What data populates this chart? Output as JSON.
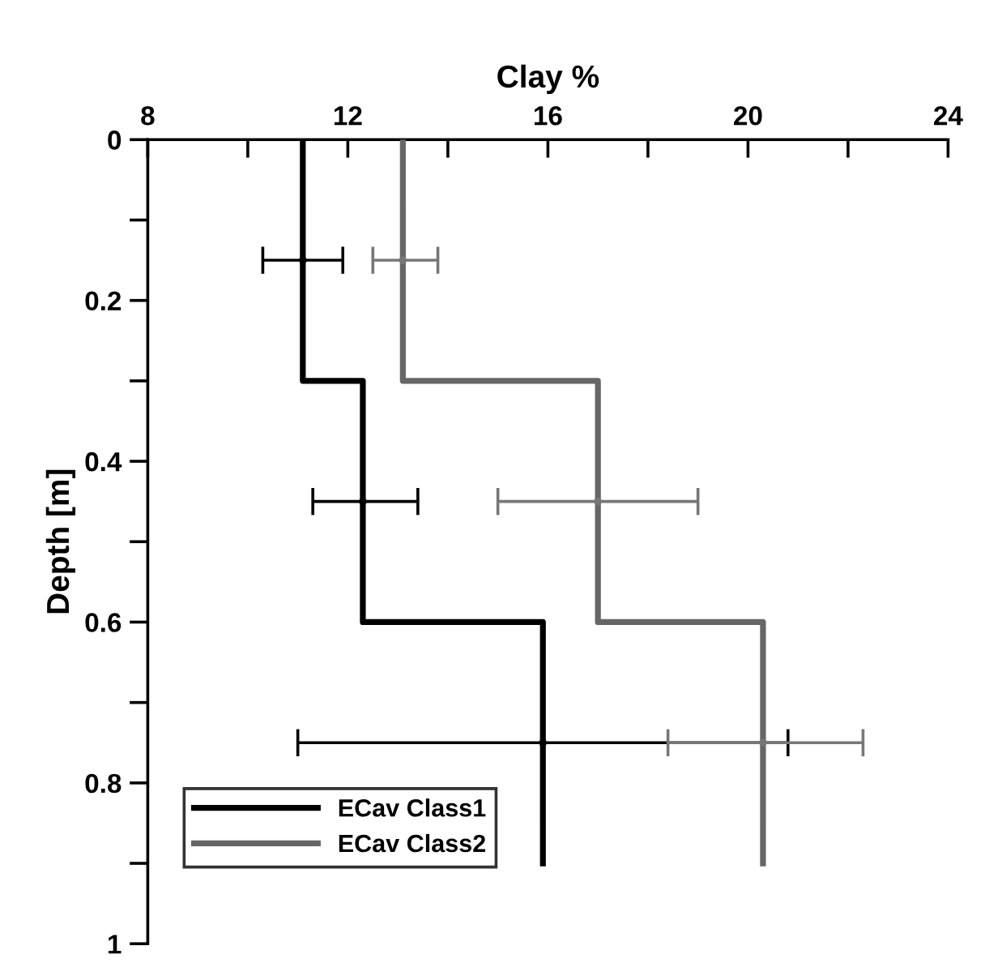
{
  "chart_data": {
    "type": "line",
    "xlabel": "Clay %",
    "ylabel": "Depth [m]",
    "xlim": [
      8,
      24
    ],
    "ylim": [
      1,
      0
    ],
    "xticks": [
      8,
      {
        "value": 10,
        "label": null
      },
      12,
      {
        "value": 14,
        "label": null
      },
      16,
      {
        "value": 18,
        "label": null
      },
      20,
      {
        "value": 22,
        "label": null
      },
      24
    ],
    "yticks": [
      0,
      {
        "value": 0.1,
        "label": null
      },
      0.2,
      {
        "value": 0.3,
        "label": null
      },
      0.4,
      {
        "value": 0.5,
        "label": null
      },
      0.6,
      {
        "value": 0.7,
        "label": null
      },
      0.8,
      {
        "value": 0.9,
        "label": null
      },
      1
    ],
    "grid": false,
    "legend": "bottom left",
    "marker": "none",
    "line_style": "solid",
    "series": [
      {
        "name": "ECav Class1",
        "color": "#000000",
        "x": [
          11.1,
          11.1,
          12.3,
          12.3,
          15.9,
          15.9
        ],
        "values": [
          0,
          0.3,
          0.3,
          0.6,
          0.6,
          0.9
        ]
      },
      {
        "name": "ECav Class2",
        "color": "#666666",
        "x": [
          13.1,
          13.1,
          17.0,
          17.0,
          20.3,
          20.3
        ],
        "values": [
          0,
          0.3,
          0.3,
          0.6,
          0.6,
          0.9
        ]
      },
      {
        "color": "#000000",
        "type": "scatter",
        "x": [
          11.1,
          12.3,
          15.9
        ],
        "values": [
          0.15,
          0.45,
          0.75
        ],
        "xerrors": [
          [
            10.3,
            11.9
          ],
          [
            11.3,
            13.4
          ],
          [
            11.0,
            20.8
          ]
        ]
      },
      {
        "color": "#777777",
        "type": "scatter",
        "x": [
          13.1,
          17.0,
          20.3
        ],
        "values": [
          0.15,
          0.45,
          0.75
        ],
        "xerrors": [
          [
            12.5,
            13.8
          ],
          [
            15.0,
            19.0
          ],
          [
            18.4,
            22.3
          ]
        ]
      }
    ]
  }
}
